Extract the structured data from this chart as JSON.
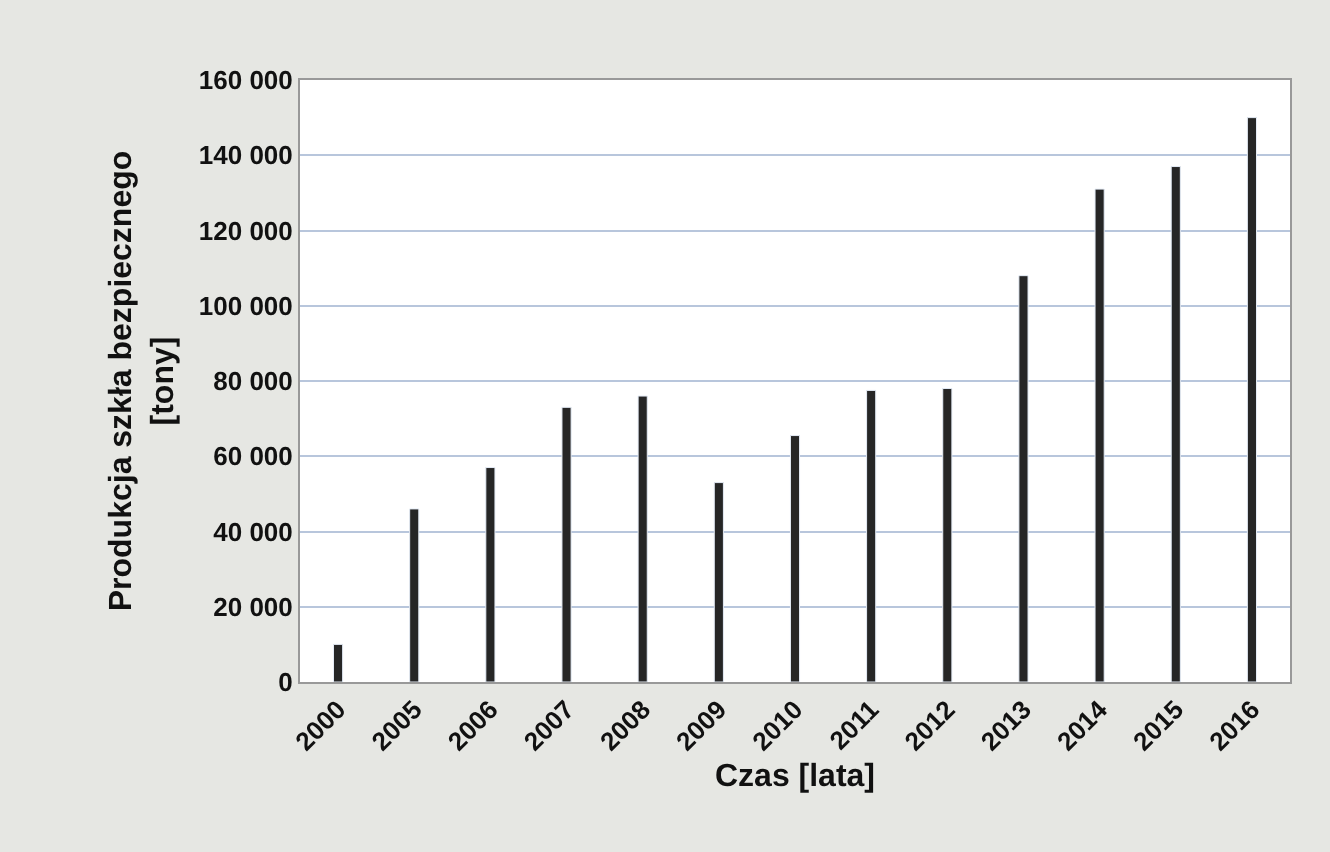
{
  "chart_data": {
    "type": "bar",
    "xlabel": "Czas [lata]",
    "ylabel": "Produkcja szkła bezpiecznego\n[tony]",
    "categories": [
      "2000",
      "2005",
      "2006",
      "2007",
      "2008",
      "2009",
      "2010",
      "2011",
      "2012",
      "2013",
      "2014",
      "2015",
      "2016"
    ],
    "values": [
      10000,
      46000,
      57000,
      73000,
      76000,
      53000,
      65500,
      77500,
      78000,
      108000,
      131000,
      137000,
      150000
    ],
    "color": "#262626",
    "ylim": [
      0,
      160000
    ],
    "yticks": [
      {
        "value": 0,
        "label": "0"
      },
      {
        "value": 20000,
        "label": "20 000"
      },
      {
        "value": 40000,
        "label": "40 000"
      },
      {
        "value": 60000,
        "label": "60 000"
      },
      {
        "value": 80000,
        "label": "80 000"
      },
      {
        "value": 100000,
        "label": "100 000"
      },
      {
        "value": 120000,
        "label": "120 000"
      },
      {
        "value": 140000,
        "label": "140 000"
      },
      {
        "value": 160000,
        "label": "160 000"
      }
    ],
    "grid": "y",
    "legend": false
  }
}
